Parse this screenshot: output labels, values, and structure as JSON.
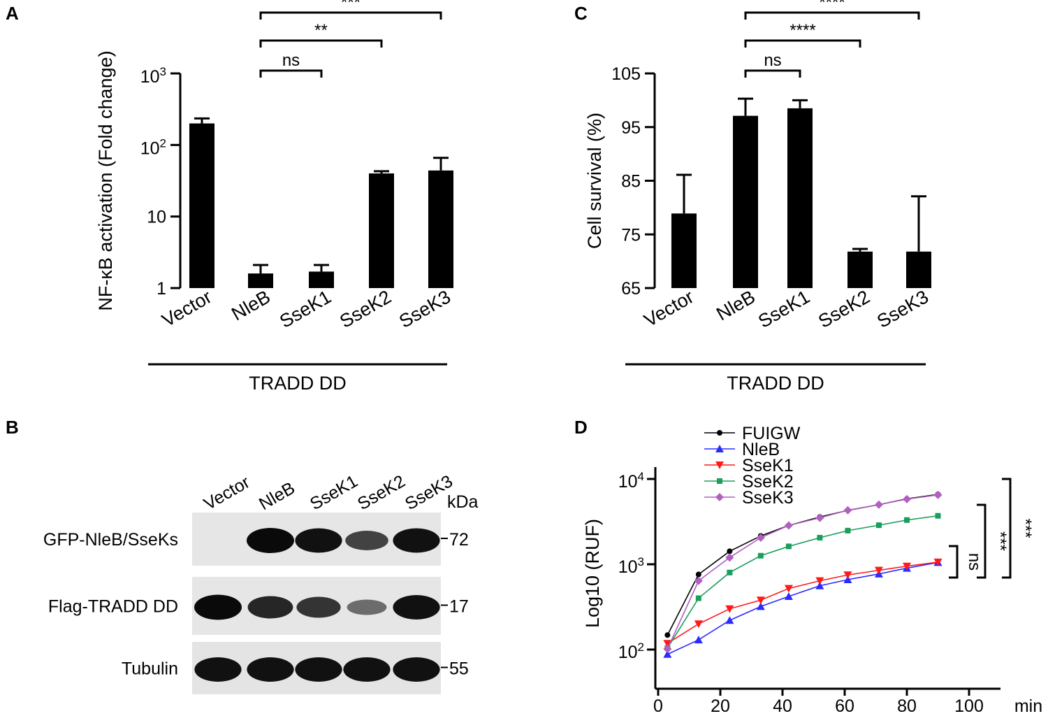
{
  "panels": {
    "A": "A",
    "B": "B",
    "C": "C",
    "D": "D"
  },
  "chart_data": [
    {
      "panel": "A",
      "type": "bar",
      "yscale": "log",
      "ylabel": "NF-κB activation (Fold change)",
      "ylim": [
        1,
        1000
      ],
      "yticks": [
        {
          "value": 1,
          "base": "1",
          "exp": ""
        },
        {
          "value": 10,
          "base": "10",
          "exp": ""
        },
        {
          "value": 100,
          "base": "10",
          "exp": "2"
        },
        {
          "value": 1000,
          "base": "10",
          "exp": "3"
        }
      ],
      "categories": [
        "Vector",
        "NleB",
        "SseK1",
        "SseK2",
        "SseK3"
      ],
      "values": [
        200,
        1.6,
        1.7,
        40,
        44
      ],
      "errors": [
        35,
        0.5,
        0.4,
        3,
        22
      ],
      "group_label": "TRADD DD",
      "significance": [
        {
          "from": 1,
          "to": 2,
          "label": "ns"
        },
        {
          "from": 1,
          "to": 3,
          "label": "**"
        },
        {
          "from": 1,
          "to": 4,
          "label": "***"
        }
      ]
    },
    {
      "panel": "C",
      "type": "bar",
      "ylabel": "Cell survival (%)",
      "ylim": [
        65,
        105
      ],
      "yticks": [
        {
          "value": 65,
          "base": "65",
          "exp": ""
        },
        {
          "value": 75,
          "base": "75",
          "exp": ""
        },
        {
          "value": 85,
          "base": "85",
          "exp": ""
        },
        {
          "value": 95,
          "base": "95",
          "exp": ""
        },
        {
          "value": 105,
          "base": "105",
          "exp": ""
        }
      ],
      "categories": [
        "Vector",
        "NleB",
        "SseK1",
        "SseK2",
        "SseK3"
      ],
      "values": [
        78.9,
        97.1,
        98.5,
        71.8,
        71.8
      ],
      "errors": [
        7.2,
        3.2,
        1.5,
        0.5,
        10.3
      ],
      "group_label": "TRADD DD",
      "significance": [
        {
          "from": 1,
          "to": 2,
          "label": "ns"
        },
        {
          "from": 1,
          "to": 3,
          "label": "****"
        },
        {
          "from": 1,
          "to": 4,
          "label": "****"
        }
      ]
    },
    {
      "panel": "D",
      "type": "line",
      "yscale": "log",
      "ylabel": "Log10 (RUF)",
      "xlabel": "min",
      "xlim": [
        0,
        110
      ],
      "ylim": [
        80,
        15000
      ],
      "xticks": [
        0,
        20,
        40,
        60,
        80,
        100
      ],
      "yticks": [
        {
          "value": 100,
          "base": "10",
          "exp": "2"
        },
        {
          "value": 1000,
          "base": "10",
          "exp": "3"
        },
        {
          "value": 10000,
          "base": "10",
          "exp": "4"
        }
      ],
      "x": [
        3,
        13,
        23,
        33,
        42,
        52,
        61,
        71,
        80,
        90
      ],
      "series": [
        {
          "name": "FUIGW",
          "color": "#000000",
          "marker": "circle",
          "values": [
            148,
            760,
            1420,
            2150,
            2850,
            3580,
            4280,
            5000,
            5850,
            6600
          ]
        },
        {
          "name": "NleB",
          "color": "#2b2bff",
          "marker": "triangle-up",
          "values": [
            88,
            130,
            220,
            320,
            420,
            560,
            660,
            770,
            900,
            1050
          ]
        },
        {
          "name": "SseK1",
          "color": "#ff1a1a",
          "marker": "triangle-down",
          "values": [
            118,
            200,
            300,
            380,
            520,
            640,
            750,
            850,
            950,
            1060
          ]
        },
        {
          "name": "SseK2",
          "color": "#1a9e5c",
          "marker": "square",
          "values": [
            104,
            400,
            800,
            1260,
            1620,
            2050,
            2480,
            2870,
            3300,
            3700
          ]
        },
        {
          "name": "SseK3",
          "color": "#b060c0",
          "marker": "diamond",
          "values": [
            102,
            640,
            1200,
            2050,
            2850,
            3500,
            4300,
            5000,
            5800,
            6500
          ]
        }
      ],
      "brackets": [
        {
          "label": "ns"
        },
        {
          "label": "***"
        },
        {
          "label": "***"
        }
      ]
    }
  ],
  "blot": {
    "lanes": [
      "Vector",
      "NleB",
      "SseK1",
      "SseK2",
      "SseK3"
    ],
    "kda_label": "kDa",
    "rows": [
      {
        "label": "GFP-NleB/SseKs",
        "kda": "72",
        "intensities": [
          0,
          1,
          0.95,
          0.6,
          0.95
        ]
      },
      {
        "label": "Flag-TRADD DD",
        "kda": "17",
        "intensities": [
          1,
          0.8,
          0.7,
          0.3,
          0.95
        ]
      },
      {
        "label": "Tubulin",
        "kda": "55",
        "intensities": [
          0.95,
          0.95,
          0.95,
          0.95,
          0.95
        ]
      }
    ]
  }
}
